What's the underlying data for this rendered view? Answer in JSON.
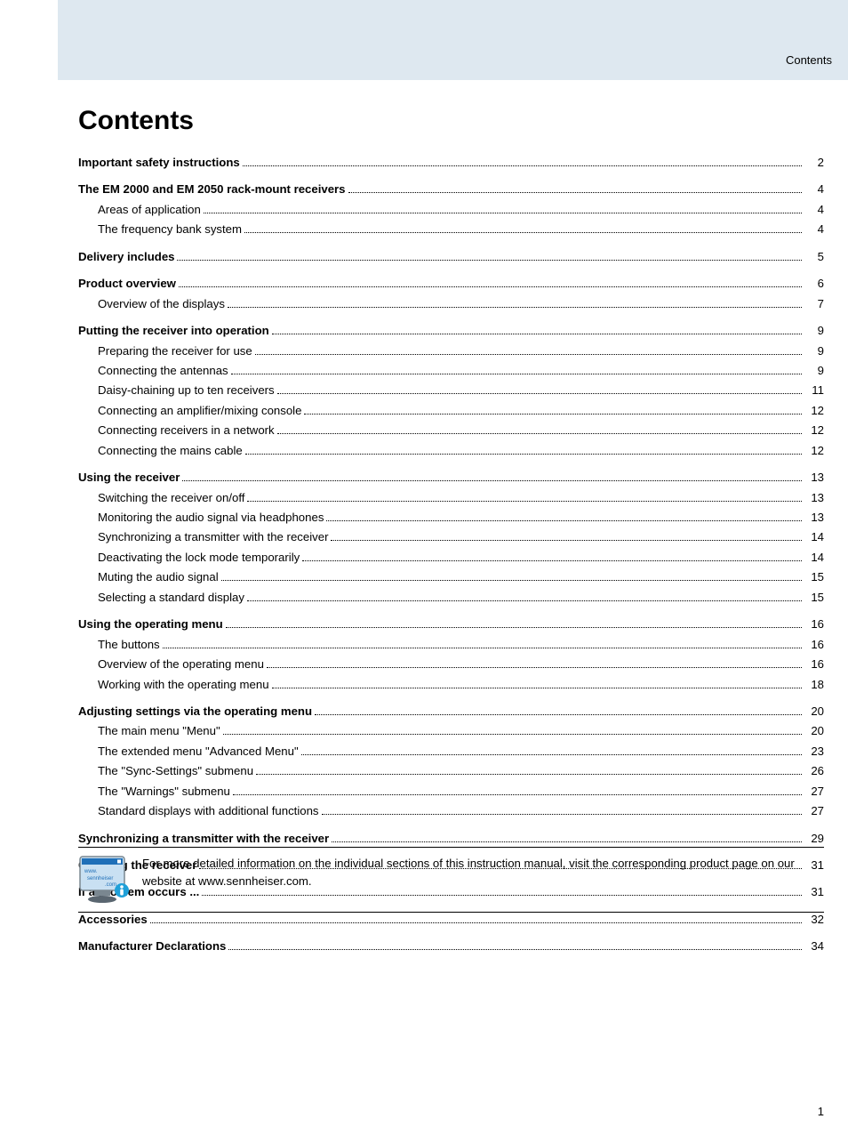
{
  "header": {
    "label": "Contents"
  },
  "title": "Contents",
  "toc": {
    "sections": [
      {
        "entries": [
          {
            "label": "Important safety instructions",
            "page": "2",
            "bold": true,
            "indent": false
          }
        ]
      },
      {
        "entries": [
          {
            "label": "The EM 2000 and EM 2050 rack-mount receivers",
            "page": "4",
            "bold": true,
            "indent": false
          },
          {
            "label": "Areas of application",
            "page": "4",
            "bold": false,
            "indent": true
          },
          {
            "label": "The frequency bank system",
            "page": "4",
            "bold": false,
            "indent": true
          }
        ]
      },
      {
        "entries": [
          {
            "label": "Delivery includes",
            "page": "5",
            "bold": true,
            "indent": false
          }
        ]
      },
      {
        "entries": [
          {
            "label": "Product overview",
            "page": "6",
            "bold": true,
            "indent": false
          },
          {
            "label": "Overview of the displays",
            "page": "7",
            "bold": false,
            "indent": true
          }
        ]
      },
      {
        "entries": [
          {
            "label": "Putting the receiver into operation",
            "page": "9",
            "bold": true,
            "indent": false
          },
          {
            "label": "Preparing the receiver for use",
            "page": "9",
            "bold": false,
            "indent": true
          },
          {
            "label": "Connecting the antennas",
            "page": "9",
            "bold": false,
            "indent": true
          },
          {
            "label": "Daisy-chaining up to ten receivers",
            "page": "11",
            "bold": false,
            "indent": true
          },
          {
            "label": "Connecting an amplifier/mixing console",
            "page": "12",
            "bold": false,
            "indent": true
          },
          {
            "label": "Connecting receivers in a network",
            "page": "12",
            "bold": false,
            "indent": true
          },
          {
            "label": "Connecting the mains cable",
            "page": "12",
            "bold": false,
            "indent": true
          }
        ]
      },
      {
        "entries": [
          {
            "label": "Using the receiver",
            "page": "13",
            "bold": true,
            "indent": false
          },
          {
            "label": "Switching the receiver on/off",
            "page": "13",
            "bold": false,
            "indent": true
          },
          {
            "label": "Monitoring the audio signal via headphones",
            "page": "13",
            "bold": false,
            "indent": true
          },
          {
            "label": "Synchronizing a transmitter with the receiver",
            "page": "14",
            "bold": false,
            "indent": true
          },
          {
            "label": "Deactivating the lock mode temporarily",
            "page": "14",
            "bold": false,
            "indent": true
          },
          {
            "label": "Muting the audio signal",
            "page": "15",
            "bold": false,
            "indent": true
          },
          {
            "label": "Selecting a standard display",
            "page": "15",
            "bold": false,
            "indent": true
          }
        ]
      },
      {
        "entries": [
          {
            "label": "Using the operating menu",
            "page": "16",
            "bold": true,
            "indent": false
          },
          {
            "label": "The buttons",
            "page": "16",
            "bold": false,
            "indent": true
          },
          {
            "label": "Overview of the operating menu",
            "page": "16",
            "bold": false,
            "indent": true
          },
          {
            "label": "Working with the operating menu",
            "page": "18",
            "bold": false,
            "indent": true
          }
        ]
      },
      {
        "entries": [
          {
            "label": "Adjusting settings via the operating menu",
            "page": "20",
            "bold": true,
            "indent": false
          },
          {
            "label": "The main menu \"Menu\"",
            "page": "20",
            "bold": false,
            "indent": true
          },
          {
            "label": "The extended menu \"Advanced Menu\"",
            "page": "23",
            "bold": false,
            "indent": true
          },
          {
            "label": "The \"Sync-Settings\" submenu",
            "page": "26",
            "bold": false,
            "indent": true
          },
          {
            "label": "The \"Warnings\" submenu",
            "page": "27",
            "bold": false,
            "indent": true
          },
          {
            "label": "Standard displays with additional functions",
            "page": "27",
            "bold": false,
            "indent": true
          }
        ]
      },
      {
        "entries": [
          {
            "label": "Synchronizing a transmitter with the receiver",
            "page": "29",
            "bold": true,
            "indent": false
          }
        ]
      },
      {
        "entries": [
          {
            "label": "Cleaning the receiver",
            "page": "31",
            "bold": true,
            "indent": false
          }
        ]
      },
      {
        "entries": [
          {
            "label": "If a problem occurs ...",
            "page": "31",
            "bold": true,
            "indent": false
          }
        ]
      },
      {
        "entries": [
          {
            "label": "Accessories",
            "page": "32",
            "bold": true,
            "indent": false
          }
        ]
      },
      {
        "entries": [
          {
            "label": "Manufacturer Declarations",
            "page": "34",
            "bold": true,
            "indent": false
          }
        ]
      }
    ]
  },
  "info": {
    "text": "For more detailed information on the individual sections of this instruction manual, visit the corresponding product page on our website at www.sennheiser.com."
  },
  "monitor_icon": {
    "screen_bg": "#c9e0f2",
    "titlebar": "#1f6fb8",
    "text_line1": "www.",
    "text_line2": "sennheiser",
    "text_line3": ".com",
    "text_color": "#1f6fb8",
    "info_badge_color": "#1fa0d8",
    "body_color": "#7a8790",
    "base_color": "#5a6670"
  },
  "page_number": "1",
  "colors": {
    "header_band": "#dee8f0",
    "text": "#000000",
    "background": "#ffffff"
  },
  "typography": {
    "title_fontsize": 30,
    "body_fontsize": 13.2,
    "line_height": 1.7
  }
}
